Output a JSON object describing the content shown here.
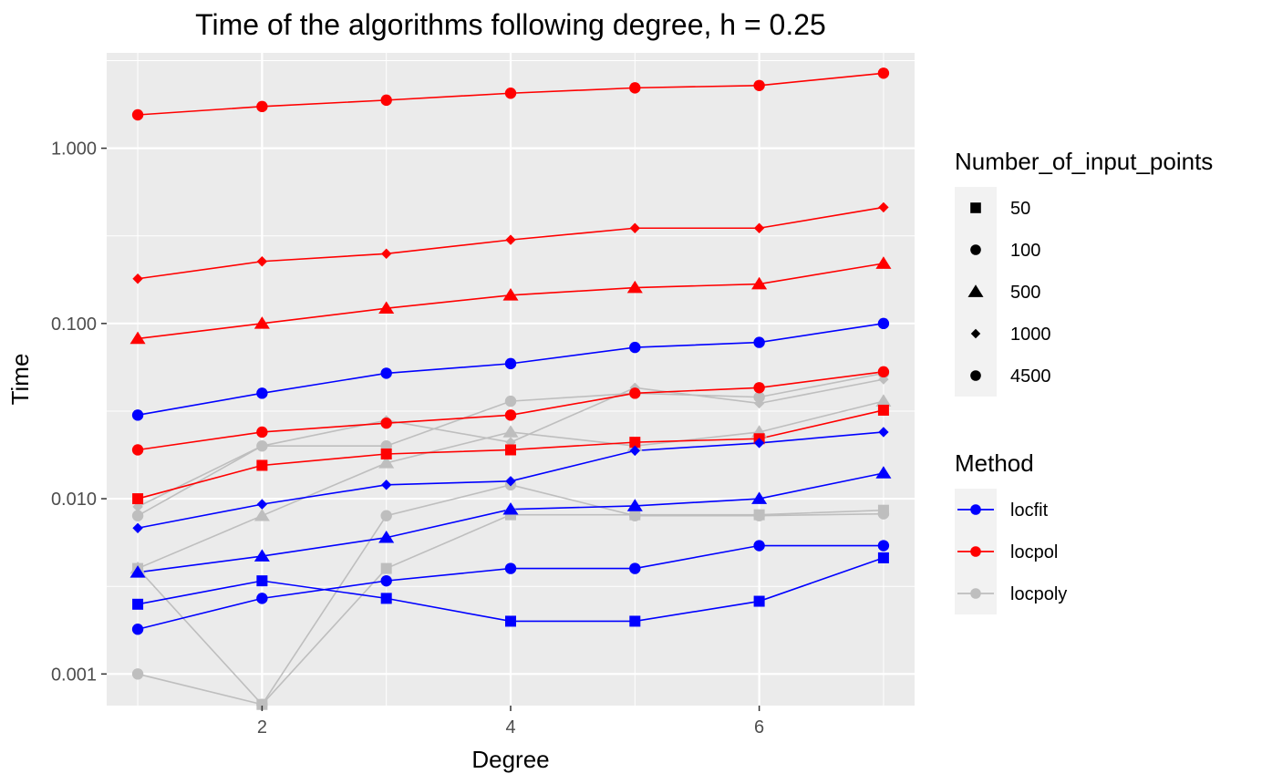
{
  "chart_data": {
    "type": "line",
    "title": "Time of the algorithms following degree, h = 0.25",
    "xlabel": "Degree",
    "ylabel": "Time",
    "x_scale": "linear",
    "y_scale": "log10",
    "xlim": [
      0.75,
      7.25
    ],
    "ylim": [
      0.00066,
      3.5
    ],
    "x_ticks": [
      2,
      4,
      6
    ],
    "x_tick_labels": [
      "2",
      "4",
      "6"
    ],
    "y_ticks": [
      0.001,
      0.01,
      0.1,
      1
    ],
    "y_tick_labels": [
      "0.001",
      "0.010",
      "0.100",
      "1.000"
    ],
    "grid": true,
    "legend_position": "right",
    "legends": {
      "shape": {
        "title": "Number_of_input_points",
        "entries": [
          {
            "label": "50",
            "shape": "square"
          },
          {
            "label": "100",
            "shape": "circle"
          },
          {
            "label": "500",
            "shape": "triangle"
          },
          {
            "label": "1000",
            "shape": "diamond"
          },
          {
            "label": "4500",
            "shape": "circle"
          }
        ]
      },
      "color": {
        "title": "Method",
        "entries": [
          {
            "label": "locfit",
            "color": "#0000ff"
          },
          {
            "label": "locpol",
            "color": "#ff0000"
          },
          {
            "label": "locpoly",
            "color": "#bebebe"
          }
        ]
      }
    },
    "x": [
      1,
      2,
      3,
      4,
      5,
      6,
      7
    ],
    "series": [
      {
        "method": "locpol",
        "points": "4500",
        "shape": "circle",
        "color": "#ff0000",
        "values": [
          1.55,
          1.73,
          1.88,
          2.06,
          2.21,
          2.28,
          2.68
        ]
      },
      {
        "method": "locpol",
        "points": "1000",
        "shape": "diamond",
        "color": "#ff0000",
        "values": [
          0.18,
          0.226,
          0.25,
          0.3,
          0.35,
          0.35,
          0.46
        ]
      },
      {
        "method": "locpol",
        "points": "500",
        "shape": "triangle",
        "color": "#ff0000",
        "values": [
          0.082,
          0.1,
          0.122,
          0.145,
          0.16,
          0.168,
          0.22
        ]
      },
      {
        "method": "locpol",
        "points": "100",
        "shape": "circle",
        "color": "#ff0000",
        "values": [
          0.019,
          0.024,
          0.027,
          0.03,
          0.04,
          0.043,
          0.053
        ]
      },
      {
        "method": "locpol",
        "points": "50",
        "shape": "square",
        "color": "#ff0000",
        "values": [
          0.01,
          0.0155,
          0.018,
          0.019,
          0.021,
          0.022,
          0.032
        ]
      },
      {
        "method": "locfit",
        "points": "4500",
        "shape": "circle",
        "color": "#0000ff",
        "values": [
          0.03,
          0.04,
          0.052,
          0.059,
          0.073,
          0.078,
          0.1
        ]
      },
      {
        "method": "locfit",
        "points": "1000",
        "shape": "diamond",
        "color": "#0000ff",
        "values": [
          0.0068,
          0.0093,
          0.012,
          0.0126,
          0.0188,
          0.0208,
          0.024
        ]
      },
      {
        "method": "locfit",
        "points": "500",
        "shape": "triangle",
        "color": "#0000ff",
        "values": [
          0.0038,
          0.0047,
          0.006,
          0.0087,
          0.0091,
          0.01,
          0.014
        ]
      },
      {
        "method": "locfit",
        "points": "100",
        "shape": "circle",
        "color": "#0000ff",
        "values": [
          0.0018,
          0.0027,
          0.0034,
          0.004,
          0.004,
          0.0054,
          0.0054
        ]
      },
      {
        "method": "locfit",
        "points": "50",
        "shape": "square",
        "color": "#0000ff",
        "values": [
          0.0025,
          0.0034,
          0.0027,
          0.002,
          0.002,
          0.0026,
          0.0046
        ]
      },
      {
        "method": "locpoly",
        "points": "4500",
        "shape": "circle",
        "color": "#bebebe",
        "values": [
          0.008,
          0.02,
          0.02,
          0.036,
          0.04,
          0.038,
          0.052
        ]
      },
      {
        "method": "locpoly",
        "points": "1000",
        "shape": "diamond",
        "color": "#bebebe",
        "values": [
          0.009,
          0.02,
          0.028,
          0.021,
          0.043,
          0.035,
          0.048
        ]
      },
      {
        "method": "locpoly",
        "points": "500",
        "shape": "triangle",
        "color": "#bebebe",
        "values": [
          0.004,
          0.008,
          0.016,
          0.024,
          0.02,
          0.024,
          0.036
        ]
      },
      {
        "method": "locpoly",
        "points": "100",
        "shape": "circle",
        "color": "#bebebe",
        "values": [
          0.001,
          0.00067,
          0.008,
          0.012,
          0.008,
          0.008,
          0.0082
        ]
      },
      {
        "method": "locpoly",
        "points": "50",
        "shape": "square",
        "color": "#bebebe",
        "values": [
          0.004,
          0.00067,
          0.004,
          0.0081,
          0.0081,
          0.0081,
          0.0086
        ]
      }
    ]
  }
}
